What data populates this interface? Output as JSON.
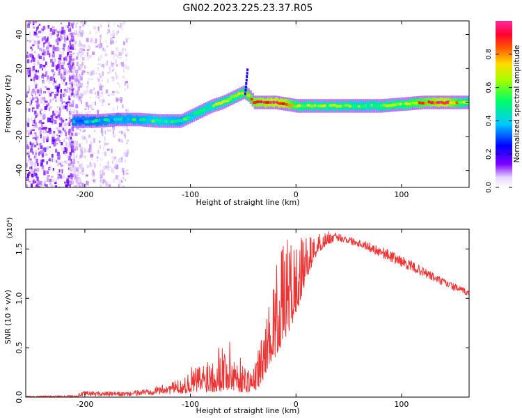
{
  "title": "GN02.2023.225.23.37.R05",
  "chart_data": [
    {
      "type": "heatmap",
      "xlabel": "Height of straight line (km)",
      "ylabel": "Frequency (Hz)",
      "xlim": [
        -256,
        164
      ],
      "ylim": [
        -50,
        48
      ],
      "x_ticks": [
        -200,
        -100,
        0,
        100
      ],
      "x_tick_labels": [
        "-200",
        "-100",
        "0",
        "100"
      ],
      "y_ticks": [
        -40,
        -20,
        0,
        20,
        40
      ],
      "y_tick_labels": [
        "-40",
        "-20",
        "0",
        "20",
        "40"
      ],
      "colorbar": {
        "label": "Normalized spectral amplitude",
        "range": [
          0,
          1
        ],
        "ticks": [
          0,
          0.2,
          0.4,
          0.6,
          0.8
        ],
        "tick_labels": [
          "0.0",
          "0.2",
          "0.4",
          "0.6",
          "0.8"
        ]
      },
      "ridge": {
        "x": [
          -210,
          -190,
          -170,
          -150,
          -130,
          -110,
          -100,
          -90,
          -80,
          -70,
          -60,
          -50,
          -45,
          -40,
          -30,
          -20,
          -10,
          0,
          20,
          40,
          60,
          80,
          100,
          120,
          140,
          164
        ],
        "frequency": [
          -11,
          -11,
          -10,
          -10,
          -11,
          -11,
          -8,
          -5,
          -2,
          0,
          3,
          6,
          4,
          0,
          0,
          0,
          -1,
          -2,
          -2,
          -2,
          -2,
          -2,
          -1,
          0,
          0,
          0
        ],
        "amplitude": [
          0.35,
          0.35,
          0.4,
          0.4,
          0.45,
          0.4,
          0.45,
          0.5,
          0.5,
          0.55,
          0.55,
          0.65,
          0.7,
          0.8,
          0.85,
          0.9,
          0.85,
          0.6,
          0.55,
          0.55,
          0.5,
          0.55,
          0.6,
          0.75,
          0.9,
          0.5
        ]
      }
    },
    {
      "type": "line",
      "xlabel": "Height of straight line (km)",
      "ylabel": "SNR (10 * v/v)",
      "y_multiplier": "(x10⁴)",
      "xlim": [
        -256,
        164
      ],
      "ylim": [
        0,
        1.7
      ],
      "x_ticks": [
        -200,
        -100,
        0,
        100
      ],
      "x_tick_labels": [
        "-200",
        "-100",
        "0",
        "100"
      ],
      "y_ticks": [
        0,
        0.5,
        1.0,
        1.5
      ],
      "y_tick_labels": [
        "0.0",
        "0.5",
        "1.0",
        "1.5"
      ],
      "series": [
        {
          "color": "#ee3333",
          "envelope_x": [
            -256,
            -210,
            -200,
            -160,
            -140,
            -120,
            -105,
            -100,
            -90,
            -80,
            -70,
            -60,
            -50,
            -40,
            -35,
            -30,
            -25,
            -20,
            -10,
            0,
            10,
            20,
            30,
            40,
            60,
            80,
            100,
            120,
            140,
            164
          ],
          "envelope_min": [
            0.0,
            0.0,
            0.01,
            0.01,
            0.02,
            0.03,
            0.04,
            0.05,
            0.05,
            0.05,
            0.06,
            0.06,
            0.05,
            0.05,
            0.1,
            0.2,
            0.35,
            0.4,
            0.6,
            0.8,
            1.2,
            1.45,
            1.55,
            1.58,
            1.52,
            1.42,
            1.32,
            1.22,
            1.12,
            1.02
          ],
          "envelope_max": [
            0.01,
            0.02,
            0.06,
            0.05,
            0.09,
            0.14,
            0.2,
            0.3,
            0.35,
            0.5,
            0.6,
            0.55,
            0.35,
            0.3,
            0.55,
            0.7,
            1.0,
            1.3,
            1.6,
            1.6,
            1.62,
            1.65,
            1.68,
            1.66,
            1.6,
            1.53,
            1.43,
            1.32,
            1.2,
            1.08
          ]
        }
      ]
    }
  ]
}
